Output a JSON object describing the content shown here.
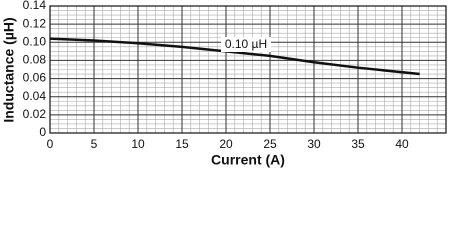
{
  "chart_data": {
    "type": "line",
    "x_label": "Current (A)",
    "y_label": "Inductance (µH)",
    "annotation": "0.10 µH",
    "series": [
      {
        "color": "#111111",
        "x": [
          0,
          5,
          10,
          15,
          20,
          25,
          30,
          35,
          42
        ],
        "values": [
          0.104,
          0.102,
          0.099,
          0.095,
          0.09,
          0.085,
          0.078,
          0.072,
          0.065
        ]
      }
    ],
    "xlim": [
      0,
      45
    ],
    "xticks": [
      0,
      5,
      10,
      15,
      20,
      25,
      30,
      35,
      40
    ],
    "ylim": [
      0,
      0.14
    ],
    "yticks": [
      0,
      0.02,
      0.04,
      0.06,
      0.08,
      {
        "value": 0.1,
        "label": "0.10"
      },
      0.12,
      0.14
    ],
    "grid": true
  }
}
